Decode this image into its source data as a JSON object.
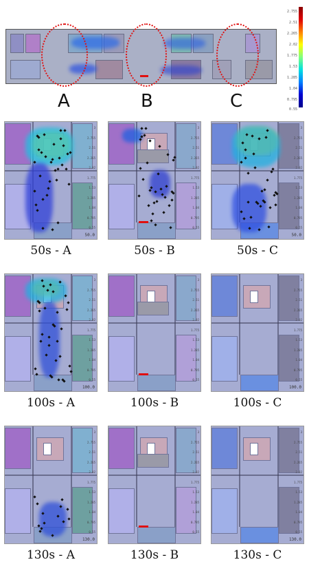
{
  "overview": {
    "sections": [
      "A",
      "B",
      "C"
    ]
  },
  "colorbar": {
    "ticks": [
      "2.755",
      "2.51",
      "2.265",
      "2.02",
      "1.775",
      "1.53",
      "1.285",
      "1.04",
      "0.795",
      "0.55"
    ],
    "colors": [
      "#8a0000",
      "#e00000",
      "#ff8000",
      "#ffff00",
      "#80ff80",
      "#00e0e0",
      "#0080ff",
      "#0000d0",
      "#00008a"
    ]
  },
  "panel_scale": [
    "3",
    "2.755",
    "2.51",
    "2.265",
    "2.02",
    "1.775",
    "1.53",
    "1.285",
    "1.04",
    "0.795",
    "0.55"
  ],
  "panels": [
    {
      "time_label": "50.0",
      "caption": "50s  -  A"
    },
    {
      "time_label": "",
      "caption": "50s  -  B"
    },
    {
      "time_label": "50.0",
      "caption": "50s  -  C"
    },
    {
      "time_label": "100.0",
      "caption": "100s  -  A"
    },
    {
      "time_label": "",
      "caption": "100s  -  B"
    },
    {
      "time_label": "100.0",
      "caption": "100s  -  C"
    },
    {
      "time_label": "130.0",
      "caption": "130s  -  A"
    },
    {
      "time_label": "",
      "caption": "130s  -  B"
    },
    {
      "time_label": "130.0",
      "caption": "130s  -  C"
    }
  ]
}
